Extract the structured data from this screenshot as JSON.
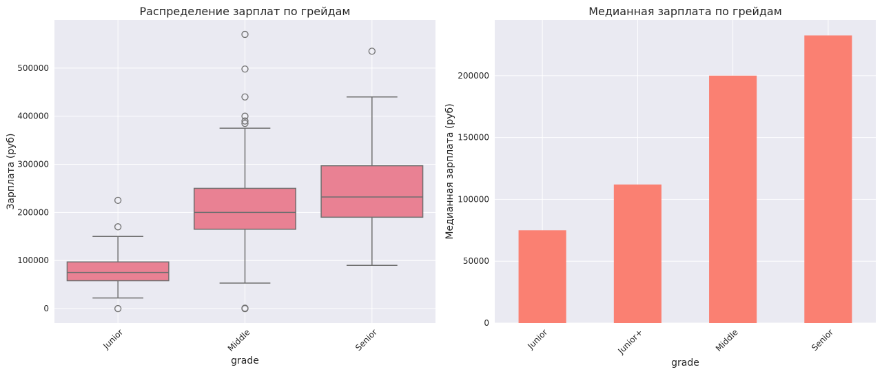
{
  "chart_data": [
    {
      "type": "box",
      "title": "Распределение зарплат по грейдам",
      "xlabel": "grade",
      "ylabel": "Зарплата (руб)",
      "categories": [
        "Junior",
        "Middle",
        "Senior"
      ],
      "ylim": [
        -30000,
        600000
      ],
      "yticks": [
        0,
        100000,
        200000,
        300000,
        400000,
        500000
      ],
      "grid": true,
      "box_color": "#e98193",
      "boxes": [
        {
          "category": "Junior",
          "whisker_low": 22000,
          "q1": 58000,
          "median": 75000,
          "q3": 97000,
          "whisker_high": 150000,
          "outliers": [
            225000,
            170000,
            0
          ]
        },
        {
          "category": "Middle",
          "whisker_low": 53000,
          "q1": 165000,
          "median": 200000,
          "q3": 250000,
          "whisker_high": 375000,
          "outliers": [
            570000,
            498000,
            440000,
            400000,
            390000,
            385000,
            1000,
            0
          ]
        },
        {
          "category": "Senior",
          "whisker_low": 90000,
          "q1": 190000,
          "median": 232000,
          "q3": 297000,
          "whisker_high": 440000,
          "outliers": [
            535000
          ]
        }
      ]
    },
    {
      "type": "bar",
      "title": "Медианная зарплата по грейдам",
      "xlabel": "grade",
      "ylabel": "Медианная зарплата (руб)",
      "categories": [
        "Junior",
        "Junior+",
        "Middle",
        "Senior"
      ],
      "values": [
        75000,
        112000,
        200000,
        232500
      ],
      "ylim": [
        0,
        245000
      ],
      "yticks": [
        0,
        50000,
        100000,
        150000,
        200000
      ],
      "grid": true,
      "bar_color": "#fa8072"
    }
  ]
}
